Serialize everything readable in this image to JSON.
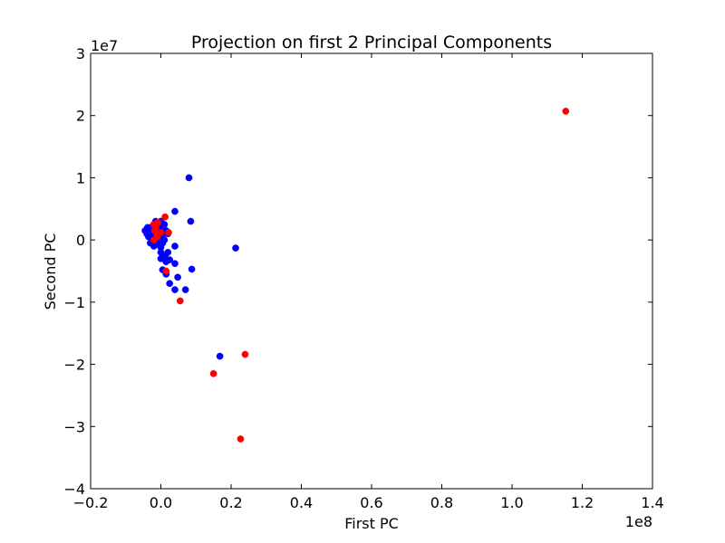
{
  "chart_data": {
    "type": "scatter",
    "title": "Projection on first 2 Principal Components",
    "xlabel": "First PC",
    "ylabel": "Second PC",
    "xlim": [
      -0.2,
      1.4
    ],
    "ylim": [
      -4,
      3
    ],
    "x_multiplier_label": "1e8",
    "y_multiplier_label": "1e7",
    "x_ticks": [
      -0.2,
      0.0,
      0.2,
      0.4,
      0.6,
      0.8,
      1.0,
      1.2,
      1.4
    ],
    "x_tick_labels": [
      "−0.2",
      "0.0",
      "0.2",
      "0.4",
      "0.6",
      "0.8",
      "1.0",
      "1.2",
      "1.4"
    ],
    "y_ticks": [
      -4,
      -3,
      -2,
      -1,
      0,
      1,
      2,
      3
    ],
    "y_tick_labels": [
      "−4",
      "−3",
      "−2",
      "−1",
      "0",
      "1",
      "2",
      "3"
    ],
    "grid": false,
    "series": [
      {
        "name": "blue",
        "color": "#0000ff",
        "points": [
          [
            -0.04,
            0.1
          ],
          [
            -0.045,
            0.15
          ],
          [
            -0.035,
            0.05
          ],
          [
            -0.03,
            0.2
          ],
          [
            -0.02,
            0.25
          ],
          [
            -0.025,
            0.0
          ],
          [
            -0.03,
            -0.05
          ],
          [
            -0.02,
            -0.1
          ],
          [
            -0.015,
            0.3
          ],
          [
            -0.01,
            0.28
          ],
          [
            -0.005,
            0.22
          ],
          [
            0.0,
            0.18
          ],
          [
            0.005,
            0.12
          ],
          [
            0.01,
            0.25
          ],
          [
            0.015,
            0.15
          ],
          [
            0.02,
            0.1
          ],
          [
            -0.01,
            0.05
          ],
          [
            -0.015,
            -0.02
          ],
          [
            -0.005,
            -0.08
          ],
          [
            0.0,
            -0.12
          ],
          [
            0.005,
            -0.05
          ],
          [
            0.01,
            0.0
          ],
          [
            -0.02,
            0.08
          ],
          [
            -0.025,
            0.18
          ],
          [
            -0.01,
            0.12
          ],
          [
            0.0,
            0.3
          ],
          [
            -0.008,
            0.02
          ],
          [
            0.003,
            0.06
          ],
          [
            -0.028,
            0.12
          ],
          [
            -0.038,
            0.2
          ],
          [
            0.0,
            -0.2
          ],
          [
            0.005,
            -0.3
          ],
          [
            0.012,
            -0.25
          ],
          [
            0.015,
            -0.35
          ],
          [
            0.02,
            -0.2
          ],
          [
            0.0,
            -0.3
          ],
          [
            0.025,
            -0.32
          ],
          [
            0.04,
            -0.38
          ],
          [
            0.04,
            -0.1
          ],
          [
            0.005,
            -0.48
          ],
          [
            0.015,
            -0.55
          ],
          [
            0.048,
            -0.6
          ],
          [
            0.088,
            -0.47
          ],
          [
            0.025,
            -0.7
          ],
          [
            0.04,
            -0.8
          ],
          [
            0.07,
            -0.8
          ],
          [
            0.08,
            1.0
          ],
          [
            0.085,
            0.3
          ],
          [
            0.04,
            0.46
          ],
          [
            0.213,
            -0.13
          ],
          [
            0.168,
            -1.87
          ]
        ]
      },
      {
        "name": "red",
        "color": "#ff0000",
        "points": [
          [
            -0.02,
            0.25
          ],
          [
            -0.015,
            0.2
          ],
          [
            -0.018,
            0.15
          ],
          [
            -0.012,
            0.1
          ],
          [
            -0.01,
            0.05
          ],
          [
            -0.02,
            0.0
          ],
          [
            -0.008,
            0.28
          ],
          [
            0.0,
            0.12
          ],
          [
            0.012,
            0.37
          ],
          [
            0.022,
            0.12
          ],
          [
            0.015,
            -0.5
          ],
          [
            0.055,
            -0.98
          ],
          [
            0.24,
            -1.84
          ],
          [
            0.15,
            -2.15
          ],
          [
            0.227,
            -3.2
          ],
          [
            1.153,
            2.07
          ]
        ]
      }
    ]
  }
}
